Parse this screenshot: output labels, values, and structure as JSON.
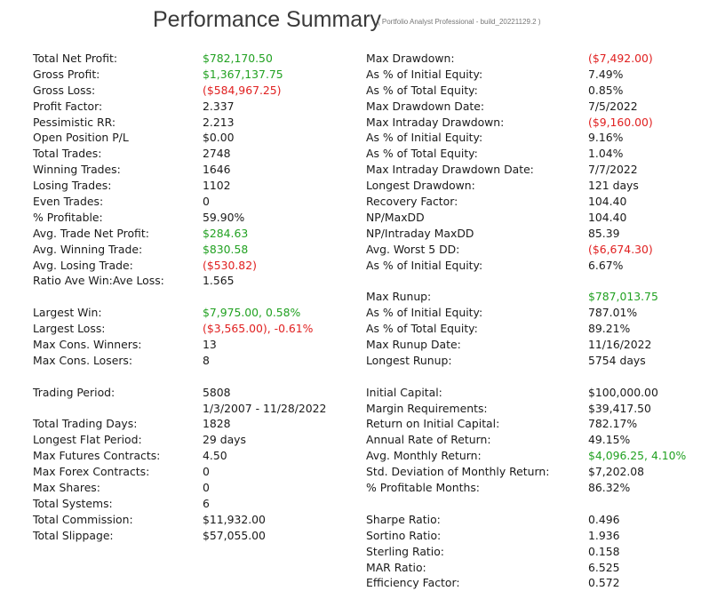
{
  "header": {
    "title": "Performance Summary",
    "subtitle": "( Portfolio Analyst Professional - build_20221129.2 )"
  },
  "colors": {
    "positive": "#21a121",
    "negative": "#e02020",
    "text": "#1a1a1a"
  },
  "left": [
    {
      "label": "Total Net Profit:",
      "value": "$782,170.50",
      "tone": "pos"
    },
    {
      "label": "Gross Profit:",
      "value": "$1,367,137.75",
      "tone": "pos"
    },
    {
      "label": "Gross Loss:",
      "value": "($584,967.25)",
      "tone": "neg"
    },
    {
      "label": "Profit Factor:",
      "value": "2.337",
      "tone": ""
    },
    {
      "label": "Pessimistic RR:",
      "value": "2.213",
      "tone": ""
    },
    {
      "label": "Open Position P/L",
      "value": "$0.00",
      "tone": ""
    },
    {
      "label": "Total Trades:",
      "value": "2748",
      "tone": ""
    },
    {
      "label": "Winning Trades:",
      "value": "1646",
      "tone": ""
    },
    {
      "label": "Losing Trades:",
      "value": "1102",
      "tone": ""
    },
    {
      "label": "Even Trades:",
      "value": "0",
      "tone": ""
    },
    {
      "label": "% Profitable:",
      "value": "59.90%",
      "tone": ""
    },
    {
      "label": "Avg. Trade Net Profit:",
      "value": "$284.63",
      "tone": "pos"
    },
    {
      "label": "Avg. Winning Trade:",
      "value": "$830.58",
      "tone": "pos"
    },
    {
      "label": "Avg. Losing Trade:",
      "value": "($530.82)",
      "tone": "neg"
    },
    {
      "label": "Ratio Ave Win:Ave Loss:",
      "value": "1.565",
      "tone": ""
    },
    {
      "label": "",
      "value": "",
      "tone": ""
    },
    {
      "label": "Largest Win:",
      "value": "$7,975.00, 0.58%",
      "tone": "pos"
    },
    {
      "label": "Largest Loss:",
      "value": "($3,565.00), -0.61%",
      "tone": "neg"
    },
    {
      "label": "Max Cons. Winners:",
      "value": "13",
      "tone": ""
    },
    {
      "label": "Max Cons. Losers:",
      "value": "8",
      "tone": ""
    },
    {
      "label": "",
      "value": "",
      "tone": ""
    },
    {
      "label": "Trading Period:",
      "value": "5808",
      "tone": ""
    },
    {
      "label": "",
      "value": "1/3/2007 - 11/28/2022",
      "tone": ""
    },
    {
      "label": "Total Trading Days:",
      "value": "1828",
      "tone": ""
    },
    {
      "label": "Longest Flat Period:",
      "value": "29 days",
      "tone": ""
    },
    {
      "label": "Max Futures Contracts:",
      "value": "4.50",
      "tone": ""
    },
    {
      "label": "Max Forex Contracts:",
      "value": "0",
      "tone": ""
    },
    {
      "label": "Max Shares:",
      "value": "0",
      "tone": ""
    },
    {
      "label": "Total Systems:",
      "value": "6",
      "tone": ""
    },
    {
      "label": "Total Commission:",
      "value": "$11,932.00",
      "tone": ""
    },
    {
      "label": "Total Slippage:",
      "value": "$57,055.00",
      "tone": ""
    }
  ],
  "right": [
    {
      "label": "Max Drawdown:",
      "value": "($7,492.00)",
      "tone": "neg"
    },
    {
      "label": "As % of Initial Equity:",
      "value": "7.49%",
      "tone": ""
    },
    {
      "label": "As % of Total Equity:",
      "value": "0.85%",
      "tone": ""
    },
    {
      "label": "Max Drawdown Date:",
      "value": "7/5/2022",
      "tone": ""
    },
    {
      "label": "Max Intraday Drawdown:",
      "value": "($9,160.00)",
      "tone": "neg"
    },
    {
      "label": "As % of Initial Equity:",
      "value": "9.16%",
      "tone": ""
    },
    {
      "label": "As % of Total Equity:",
      "value": "1.04%",
      "tone": ""
    },
    {
      "label": "Max Intraday Drawdown Date:",
      "value": "7/7/2022",
      "tone": ""
    },
    {
      "label": "Longest Drawdown:",
      "value": "121 days",
      "tone": ""
    },
    {
      "label": "Recovery Factor:",
      "value": "104.40",
      "tone": ""
    },
    {
      "label": "NP/MaxDD",
      "value": "104.40",
      "tone": ""
    },
    {
      "label": "NP/Intraday MaxDD",
      "value": "85.39",
      "tone": ""
    },
    {
      "label": "Avg. Worst 5 DD:",
      "value": "($6,674.30)",
      "tone": "neg"
    },
    {
      "label": "As % of Initial Equity:",
      "value": "6.67%",
      "tone": ""
    },
    {
      "label": "",
      "value": "",
      "tone": ""
    },
    {
      "label": "Max Runup:",
      "value": "$787,013.75",
      "tone": "pos"
    },
    {
      "label": "As % of Initial Equity:",
      "value": "787.01%",
      "tone": ""
    },
    {
      "label": "As % of Total Equity:",
      "value": "89.21%",
      "tone": ""
    },
    {
      "label": "Max Runup Date:",
      "value": "11/16/2022",
      "tone": ""
    },
    {
      "label": "Longest Runup:",
      "value": "5754 days",
      "tone": ""
    },
    {
      "label": "",
      "value": "",
      "tone": ""
    },
    {
      "label": "Initial Capital:",
      "value": "$100,000.00",
      "tone": ""
    },
    {
      "label": "Margin Requirements:",
      "value": "$39,417.50",
      "tone": ""
    },
    {
      "label": "Return on Initial Capital:",
      "value": "782.17%",
      "tone": ""
    },
    {
      "label": "Annual Rate of Return:",
      "value": "49.15%",
      "tone": ""
    },
    {
      "label": "Avg. Monthly Return:",
      "value": "$4,096.25, 4.10%",
      "tone": "pos"
    },
    {
      "label": "Std. Deviation of Monthly Return:",
      "value": "$7,202.08",
      "tone": ""
    },
    {
      "label": "% Profitable Months:",
      "value": "86.32%",
      "tone": ""
    },
    {
      "label": "",
      "value": "",
      "tone": ""
    },
    {
      "label": "Sharpe Ratio:",
      "value": "0.496",
      "tone": ""
    },
    {
      "label": "Sortino Ratio:",
      "value": "1.936",
      "tone": ""
    },
    {
      "label": "Sterling Ratio:",
      "value": "0.158",
      "tone": ""
    },
    {
      "label": "MAR Ratio:",
      "value": "6.525",
      "tone": ""
    },
    {
      "label": "Efficiency Factor:",
      "value": "0.572",
      "tone": ""
    }
  ]
}
